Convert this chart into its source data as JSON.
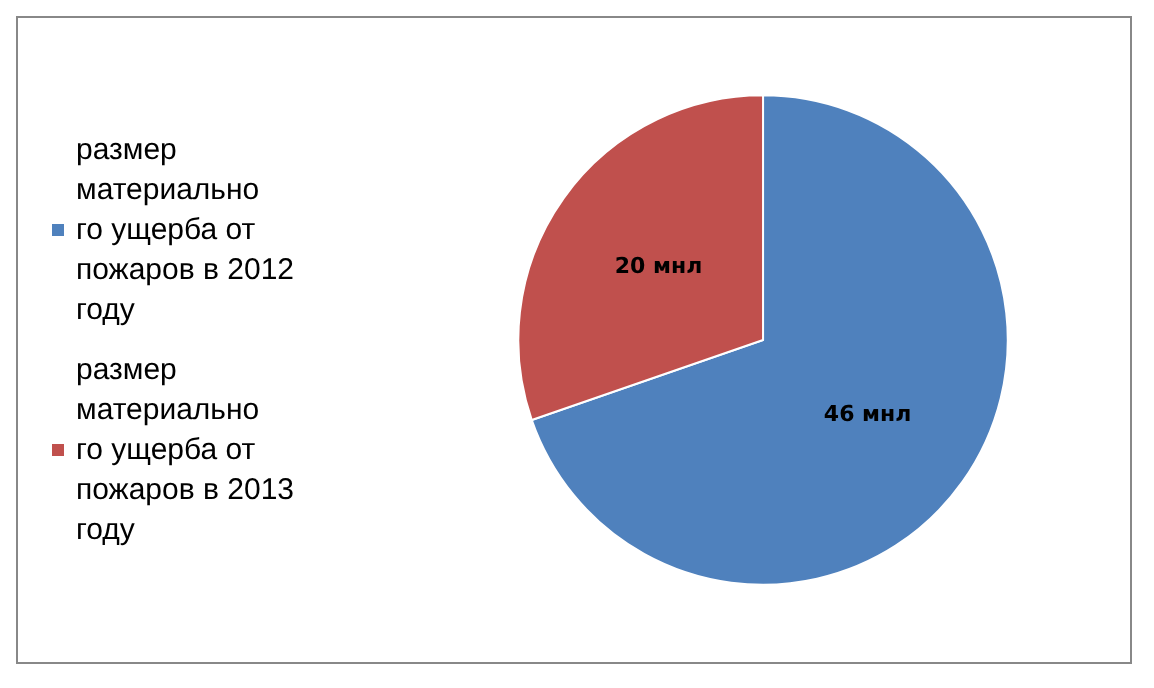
{
  "chart_data": {
    "type": "pie",
    "categories": [
      "размер материального ущерба от пожаров в 2012 году",
      "размер материального ущерба от пожаров в 2013 году"
    ],
    "values": [
      46,
      20
    ],
    "colors": [
      "#4f81bd",
      "#c0504d"
    ],
    "value_labels": [
      "46 мнл",
      "20 мнл"
    ],
    "legend": "left"
  }
}
